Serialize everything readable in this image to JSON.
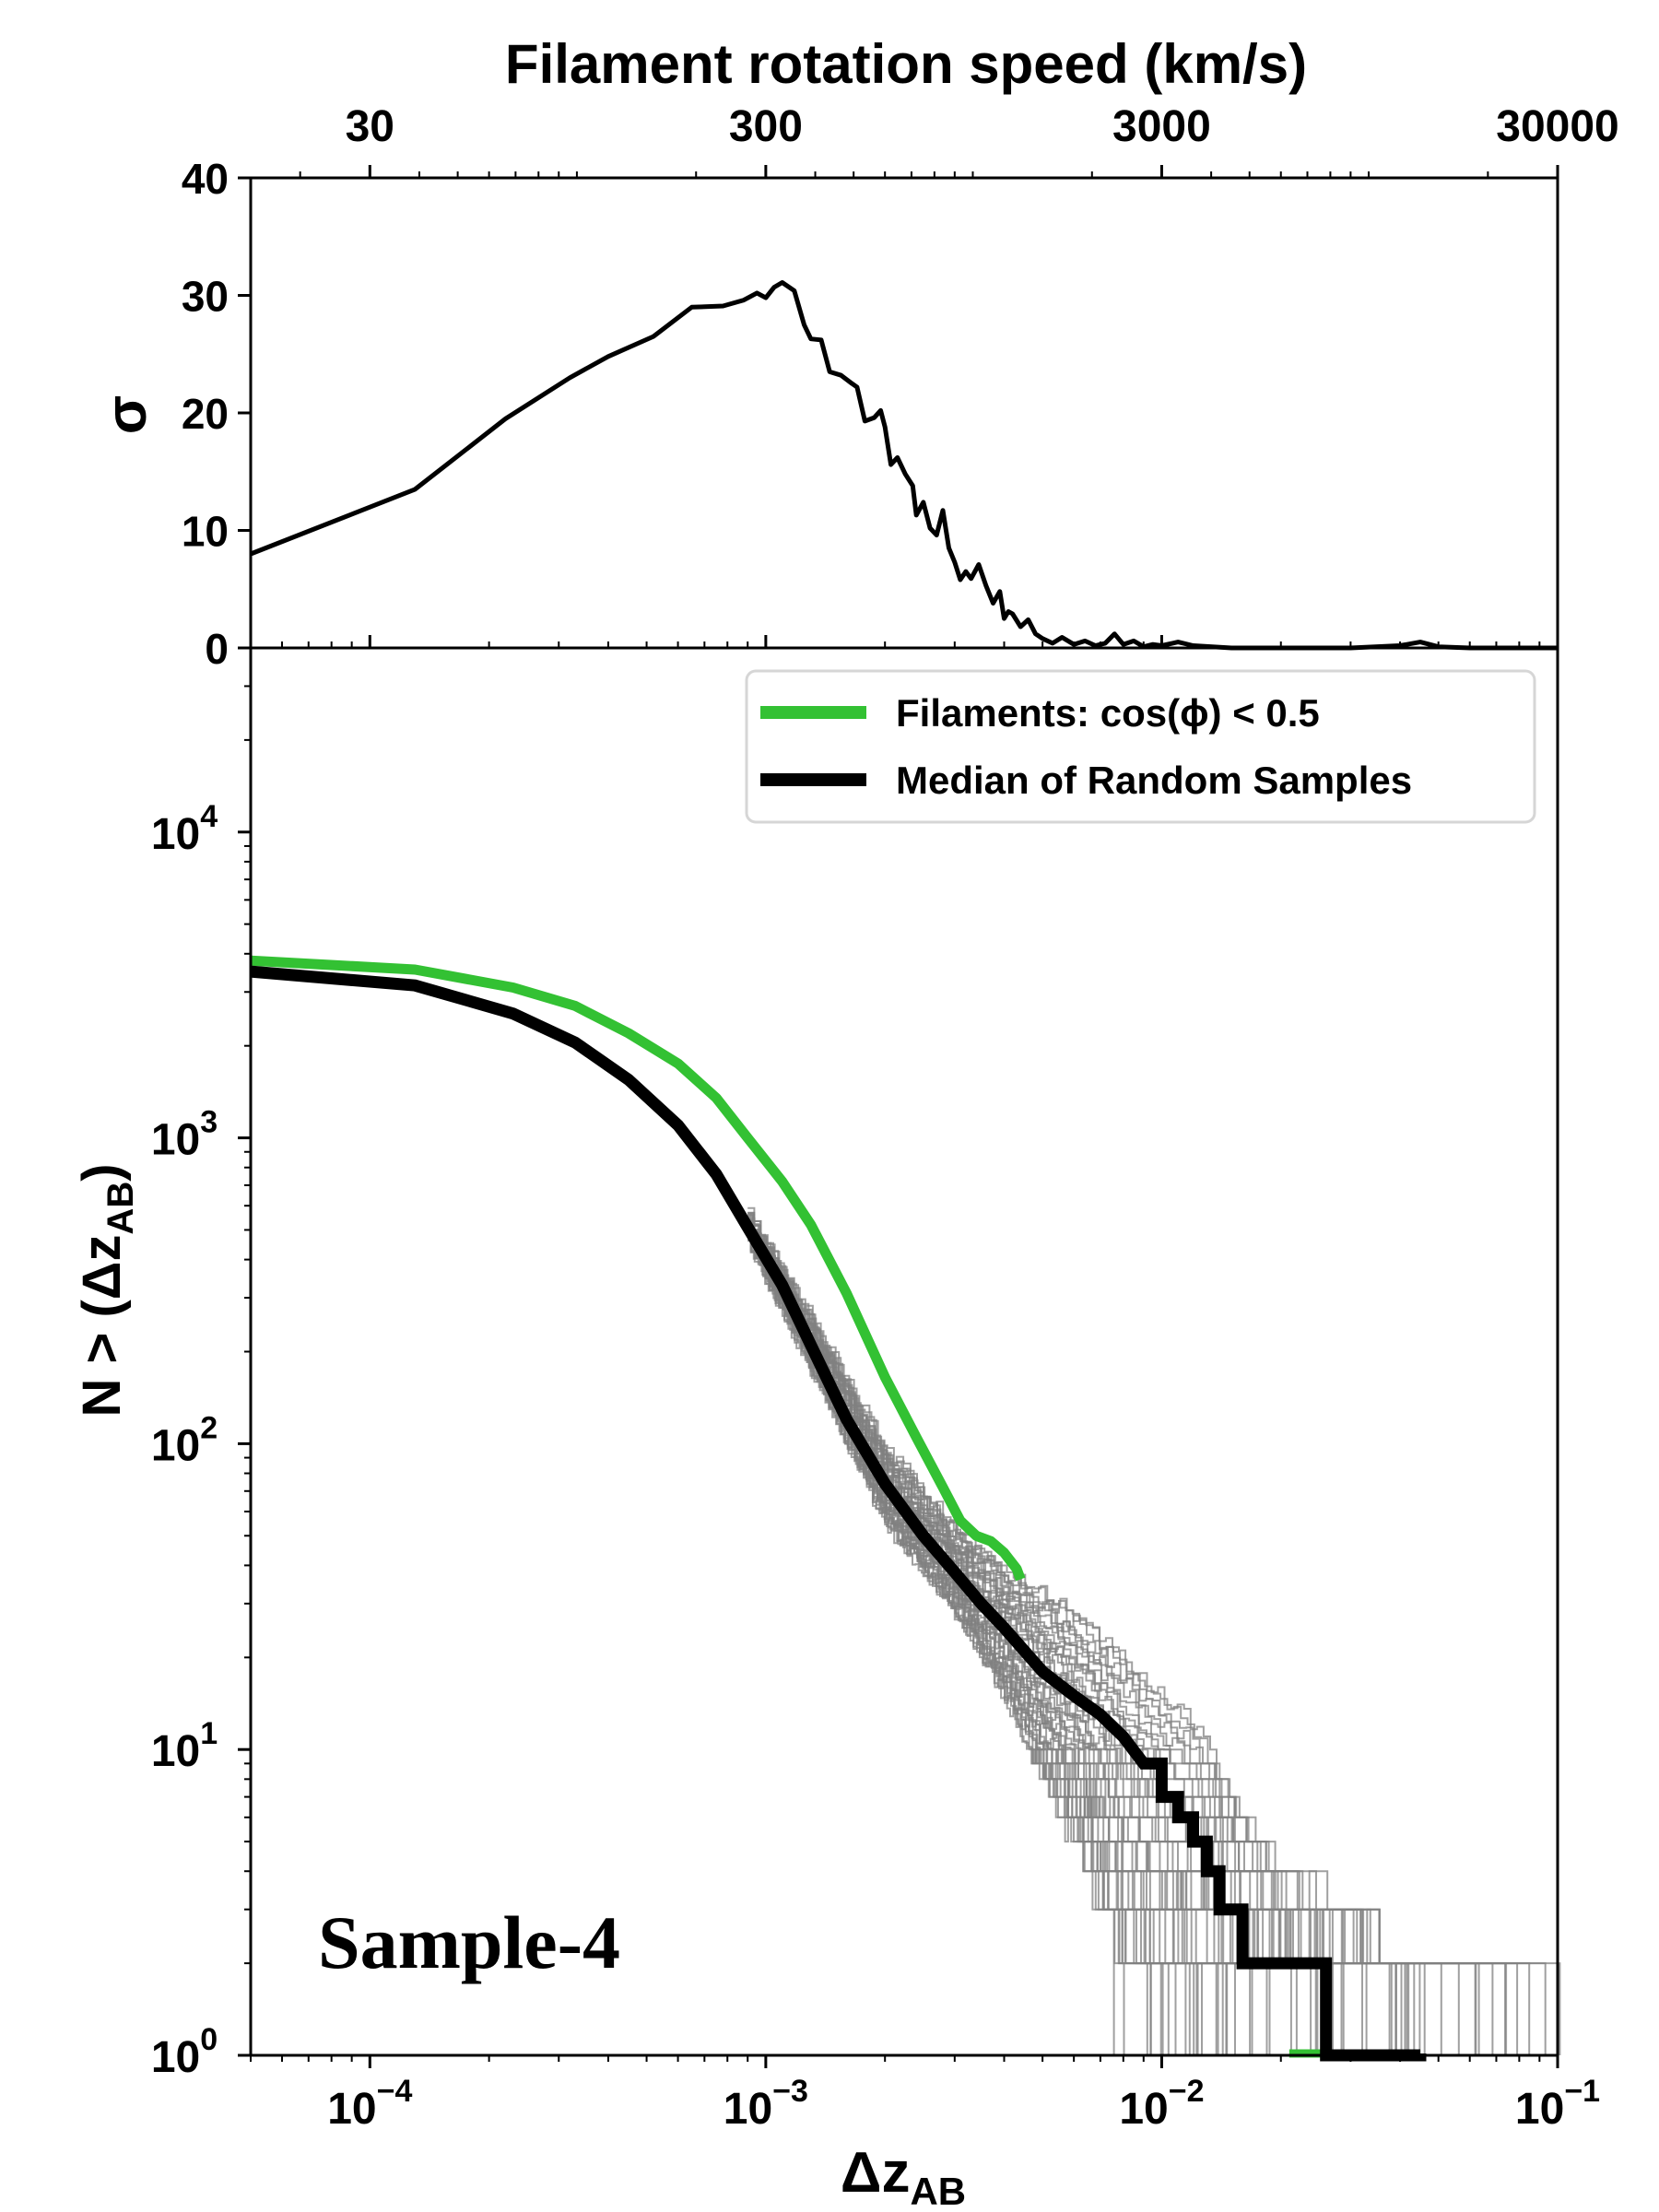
{
  "figure": {
    "top_axis_title": "Filament rotation speed (km/s)",
    "x_title": "Δz",
    "x_title_sub": "AB",
    "y_title_top": "σ",
    "y_title_bottom": "N > (Δz",
    "y_title_bottom_sub": "AB",
    "y_title_bottom_close": ")",
    "sample_label": "Sample-4"
  },
  "colors": {
    "filaments": "#33c133",
    "median": "#000000",
    "random": "#808080",
    "sigma": "#000000"
  },
  "chart_data": [
    {
      "id": "sigma-panel",
      "type": "line",
      "xscale": "log",
      "xlim": [
        5e-05,
        0.1
      ],
      "ylim": [
        0,
        40
      ],
      "ylabel": "σ",
      "yticks": [
        0,
        10,
        20,
        30,
        40
      ],
      "top_axis": {
        "title": "Filament rotation speed (km/s)",
        "tick_labels": [
          "30",
          "300",
          "3000",
          "30000"
        ],
        "tick_values": [
          30,
          300,
          3000,
          30000
        ],
        "speed_per_dz": 300000
      },
      "series": [
        {
          "name": "sigma",
          "x": [
            5e-05,
            0.00013,
            0.00022,
            0.00032,
            0.0004,
            0.00052,
            0.00065,
            0.00078,
            0.00088,
            0.00095,
            0.001,
            0.00105,
            0.0011,
            0.00118,
            0.00125,
            0.0013,
            0.00138,
            0.00145,
            0.00155,
            0.00165,
            0.0017,
            0.00178,
            0.00188,
            0.00195,
            0.002,
            0.00207,
            0.00215,
            0.00225,
            0.00235,
            0.0024,
            0.0025,
            0.0026,
            0.0027,
            0.0028,
            0.0029,
            0.003,
            0.0031,
            0.0032,
            0.0033,
            0.00345,
            0.0036,
            0.00375,
            0.0039,
            0.004,
            0.0041,
            0.0042,
            0.0044,
            0.0046,
            0.0048,
            0.005,
            0.0053,
            0.0056,
            0.006,
            0.0064,
            0.0068,
            0.0072,
            0.0076,
            0.008,
            0.0085,
            0.009,
            0.0095,
            0.01,
            0.011,
            0.012,
            0.015,
            0.02,
            0.03,
            0.04,
            0.045,
            0.05,
            0.06,
            0.1
          ],
          "y": [
            8,
            13.5,
            19.5,
            23,
            24.8,
            26.5,
            29,
            29.1,
            29.6,
            30.2,
            29.8,
            30.7,
            31.1,
            30.4,
            27.5,
            26.3,
            26.2,
            23.5,
            23.2,
            22.5,
            22.2,
            19.3,
            19.6,
            20.2,
            18.8,
            15.6,
            16.2,
            14.8,
            13.8,
            11.3,
            12.4,
            10.2,
            9.6,
            11.7,
            8.5,
            7.3,
            5.8,
            6.5,
            5.9,
            7.1,
            5.3,
            3.8,
            4.8,
            2.5,
            3.1,
            2.9,
            1.8,
            2.4,
            1.2,
            0.8,
            0.4,
            0.9,
            0.3,
            0.6,
            0.2,
            0.4,
            1.2,
            0.3,
            0.6,
            0.1,
            0.3,
            0.2,
            0.5,
            0.2,
            0,
            0,
            0,
            0.2,
            0.5,
            0.1,
            0,
            0
          ]
        }
      ]
    },
    {
      "id": "cumulative-panel",
      "type": "line",
      "xscale": "log",
      "yscale": "log",
      "xlim": [
        5e-05,
        0.1
      ],
      "ylim": [
        1,
        40000
      ],
      "xlabel": "Δz_AB",
      "ylabel": "N > (Δz_AB)",
      "xtick_labels": [
        "10",
        "10",
        "10",
        "10"
      ],
      "xtick_exponents": [
        "−4",
        "−3",
        "−2",
        "−1"
      ],
      "xtick_values": [
        0.0001,
        0.001,
        0.01,
        0.1
      ],
      "ytick_labels": [
        "10",
        "10",
        "10",
        "10",
        "10"
      ],
      "ytick_exponents": [
        "0",
        "1",
        "2",
        "3",
        "4"
      ],
      "ytick_values": [
        1,
        10,
        100,
        1000,
        10000
      ],
      "legend_position": "top-right",
      "legend": [
        "Filaments: cos(ϕ) < 0.5",
        "Median of Random Samples"
      ],
      "series": [
        {
          "name": "Filaments: cos(ϕ) < 0.5",
          "x": [
            5e-05,
            0.00013,
            0.00023,
            0.00033,
            0.00045,
            0.0006,
            0.00075,
            0.0009,
            0.0011,
            0.0013,
            0.0016,
            0.002,
            0.0024,
            0.0028,
            0.0031,
            0.0034,
            0.0037,
            0.004,
            0.0043,
            0.0044
          ],
          "y": [
            3800,
            3550,
            3100,
            2700,
            2200,
            1750,
            1350,
            1000,
            720,
            520,
            310,
            165,
            105,
            72,
            56,
            50,
            48,
            44,
            39,
            36
          ]
        },
        {
          "name": "Median of Random Samples",
          "x": [
            5e-05,
            0.00013,
            0.00023,
            0.00033,
            0.00045,
            0.0006,
            0.00075,
            0.0009,
            0.0011,
            0.0013,
            0.0016,
            0.002,
            0.0025,
            0.003,
            0.0035,
            0.004,
            0.005,
            0.006,
            0.007,
            0.008,
            0.009,
            0.01,
            0.011,
            0.012,
            0.013,
            0.014,
            0.016,
            0.02,
            0.026,
            0.027,
            0.045
          ],
          "y": [
            3500,
            3150,
            2550,
            2050,
            1550,
            1100,
            760,
            510,
            330,
            210,
            120,
            74,
            50,
            38,
            30,
            25,
            18,
            15,
            13,
            11,
            9,
            7,
            6,
            5,
            4,
            3,
            2,
            2,
            1,
            1,
            1
          ]
        },
        {
          "name": "random-samples-band-upper",
          "x": [
            0.0009,
            0.0013,
            0.002,
            0.003,
            0.004,
            0.006,
            0.008,
            0.012,
            0.016,
            0.02,
            0.03,
            0.04,
            0.09
          ],
          "y": [
            560,
            250,
            95,
            52,
            38,
            28,
            20,
            12,
            6,
            4,
            3,
            2,
            2
          ]
        },
        {
          "name": "random-samples-band-lower",
          "x": [
            0.0009,
            0.0013,
            0.002,
            0.003,
            0.004,
            0.005,
            0.006,
            0.007,
            0.008,
            0.009,
            0.01
          ],
          "y": [
            460,
            175,
            55,
            28,
            15,
            8,
            5,
            3,
            2,
            1.4,
            1
          ]
        }
      ]
    }
  ]
}
